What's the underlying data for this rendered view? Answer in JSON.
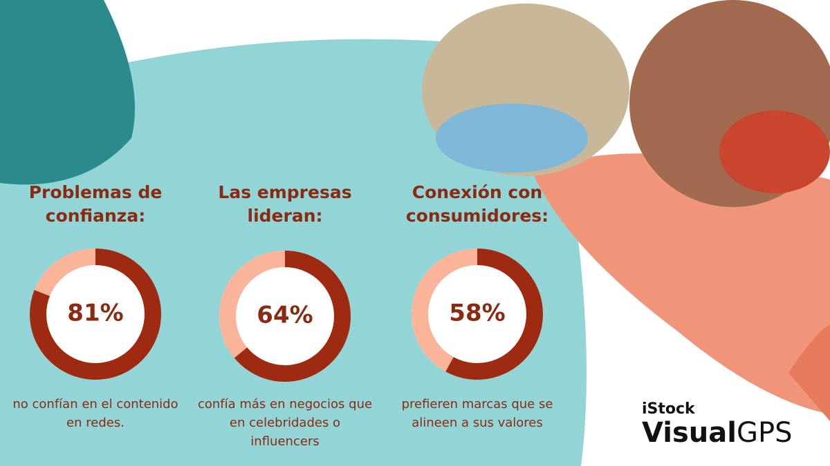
{
  "chart_data": [
    {
      "type": "donut",
      "title": "Problemas de confianza:",
      "values": [
        81
      ],
      "value_labels": [
        "81%"
      ],
      "caption": "no confían en el contenido en redes.",
      "color": "#9e2a12",
      "track_color": "#f9b49a"
    },
    {
      "type": "donut",
      "title": "Las empresas lideran:",
      "values": [
        64
      ],
      "value_labels": [
        "64%"
      ],
      "caption": "confía más en negocios que en celebridades o influencers",
      "color": "#9e2a12",
      "track_color": "#f9b49a"
    },
    {
      "type": "donut",
      "title": "Conexión con consumidores:",
      "values": [
        58
      ],
      "value_labels": [
        "58%"
      ],
      "caption": "prefieren marcas que se alineen a sus valores",
      "color": "#9e2a12",
      "track_color": "#f9b49a"
    }
  ],
  "brand": {
    "name": "iStock",
    "product_bold": "Visual",
    "product_light": "GPS"
  }
}
